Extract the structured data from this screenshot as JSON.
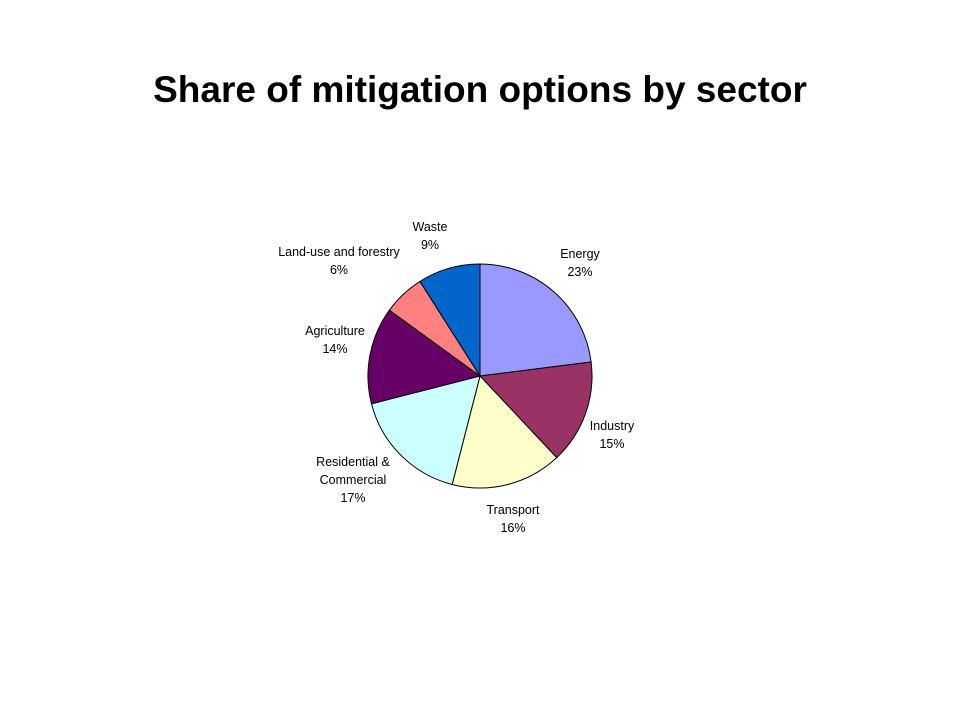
{
  "chart_data": {
    "type": "pie",
    "title": "Share of mitigation options by sector",
    "labels": [
      "Energy",
      "Industry",
      "Transport",
      "Residential & Commercial",
      "Agriculture",
      "Land-use and forestry",
      "Waste"
    ],
    "label_lines": [
      [
        "Energy",
        "23%"
      ],
      [
        "Industry",
        "15%"
      ],
      [
        "Transport",
        "16%"
      ],
      [
        "Residential &",
        "Commercial",
        "17%"
      ],
      [
        "Agriculture",
        "14%"
      ],
      [
        "Land-use and forestry",
        "6%"
      ],
      [
        "Waste",
        "9%"
      ]
    ],
    "values": [
      23,
      15,
      16,
      17,
      14,
      6,
      9
    ],
    "value_labels": [
      "23%",
      "15%",
      "16%",
      "17%",
      "14%",
      "6%",
      "9%"
    ],
    "colors": [
      "#9999FF",
      "#993366",
      "#FFFFCC",
      "#CCFFFF",
      "#660066",
      "#FF8080",
      "#0066CC"
    ],
    "start": "12 o'clock",
    "direction": "clockwise",
    "legend": "none"
  }
}
